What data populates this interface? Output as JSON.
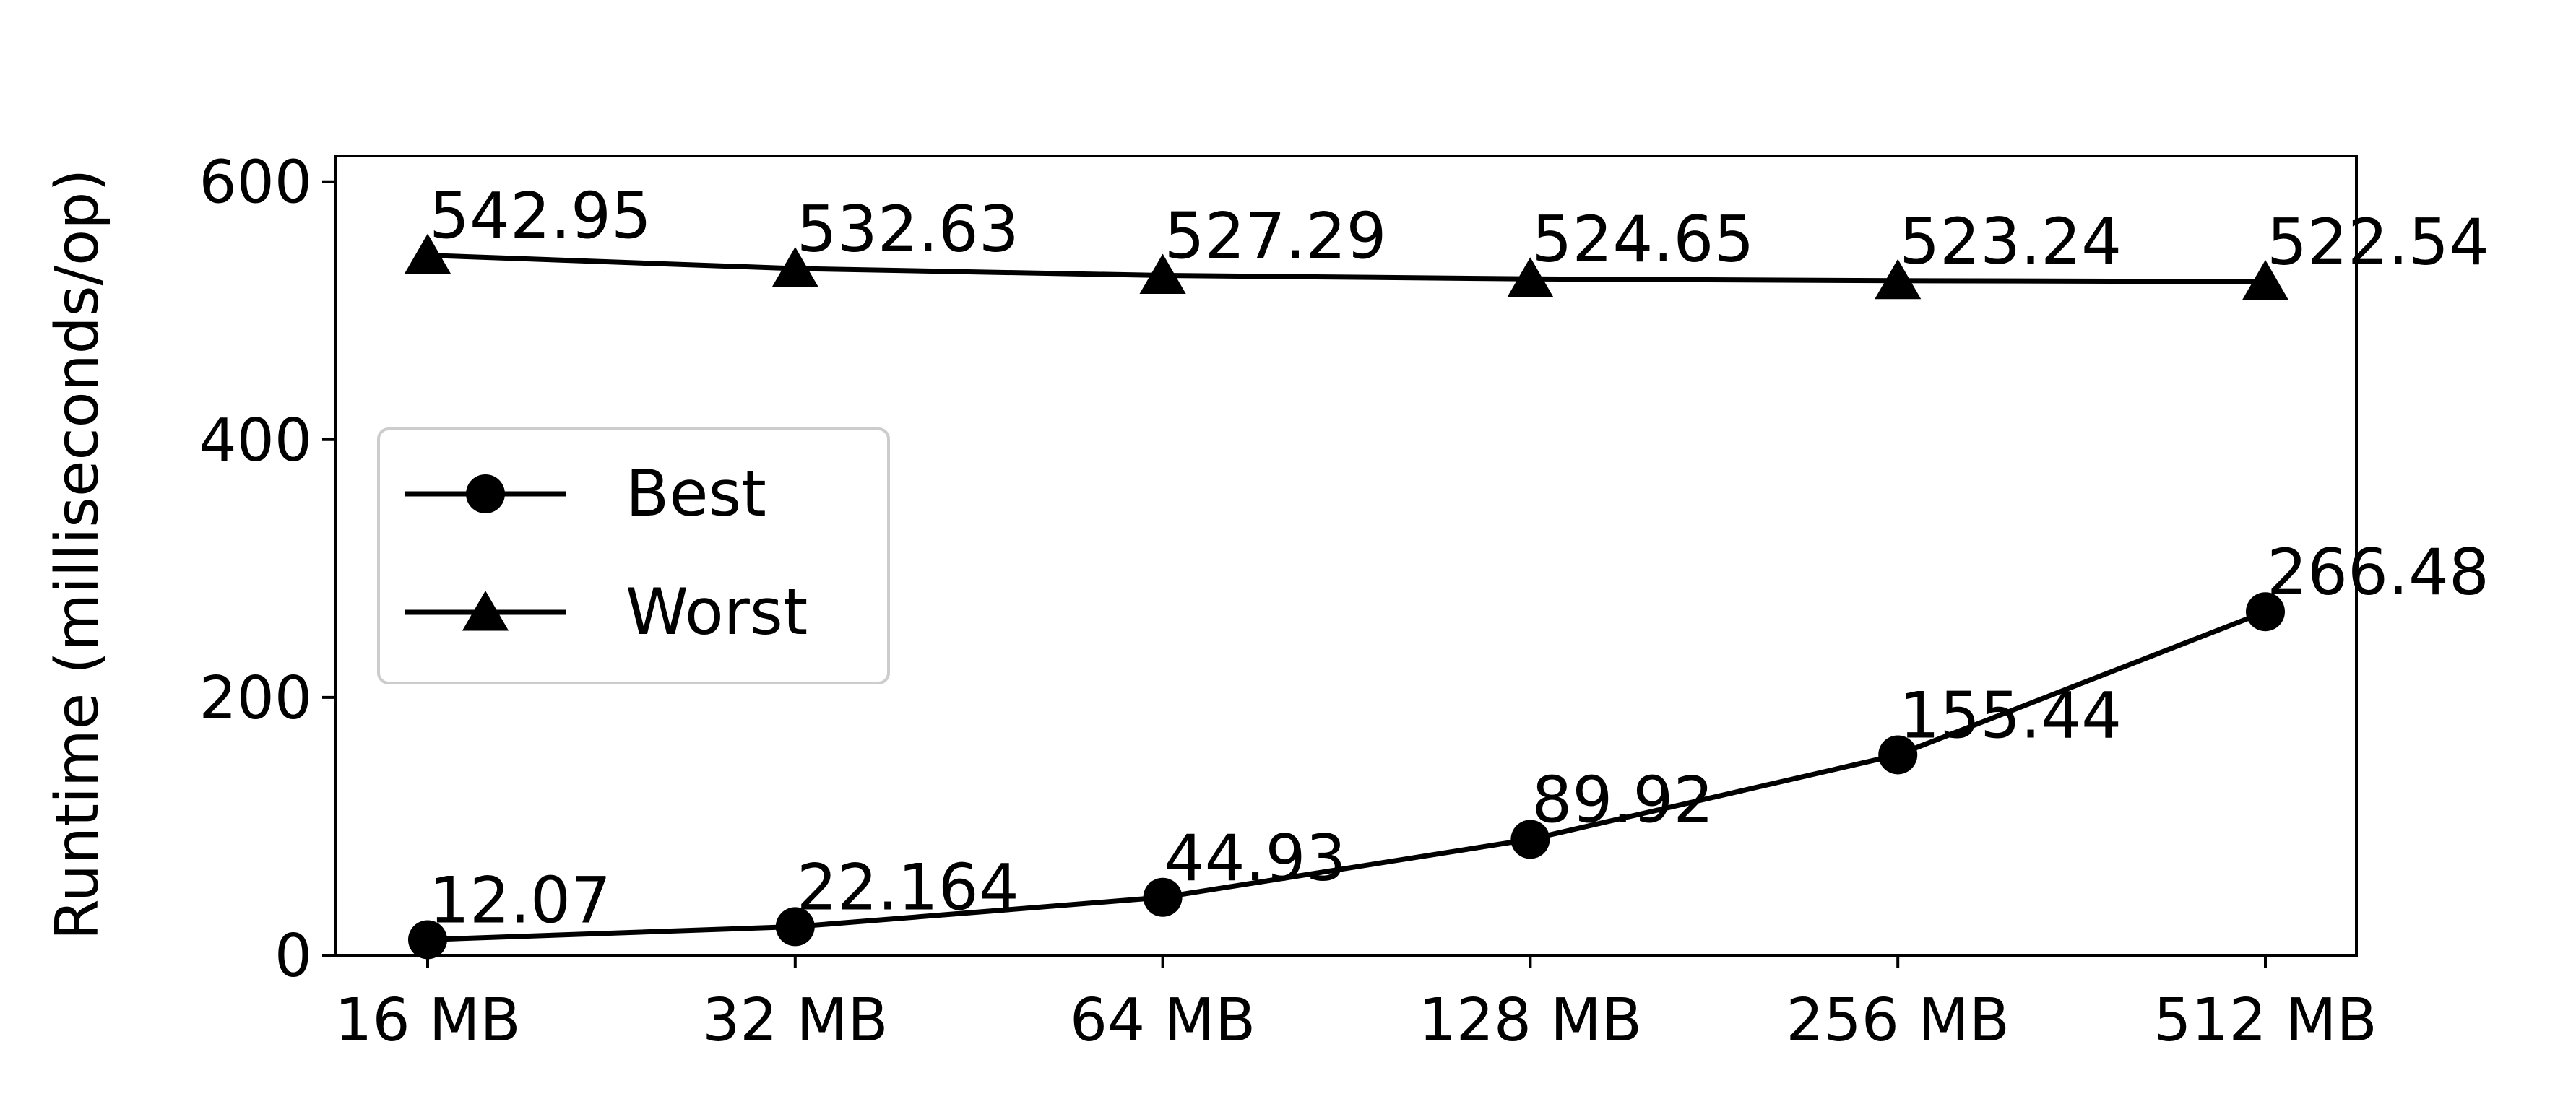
{
  "chart_data": {
    "type": "line",
    "categories": [
      "16 MB",
      "32 MB",
      "64 MB",
      "128 MB",
      "256 MB",
      "512 MB"
    ],
    "series": [
      {
        "name": "Best",
        "marker": "circle",
        "values": [
          12.07,
          22.164,
          44.93,
          89.92,
          155.44,
          266.48
        ],
        "labels": [
          "12.07",
          "22.164",
          "44.93",
          "89.92",
          "155.44",
          "266.48"
        ]
      },
      {
        "name": "Worst",
        "marker": "triangle",
        "values": [
          542.95,
          532.63,
          527.29,
          524.65,
          523.24,
          522.54
        ],
        "labels": [
          "542.95",
          "532.63",
          "527.29",
          "524.65",
          "523.24",
          "522.54"
        ]
      }
    ],
    "title": "",
    "xlabel": "",
    "ylabel": "Runtime (milliseconds/op)",
    "ylim": [
      0,
      620
    ],
    "yticks": [
      0,
      200,
      400,
      600
    ],
    "ytick_labels": [
      "0",
      "200",
      "400",
      "600"
    ],
    "grid": false,
    "legend": "center-left",
    "line_color": "#000000"
  }
}
